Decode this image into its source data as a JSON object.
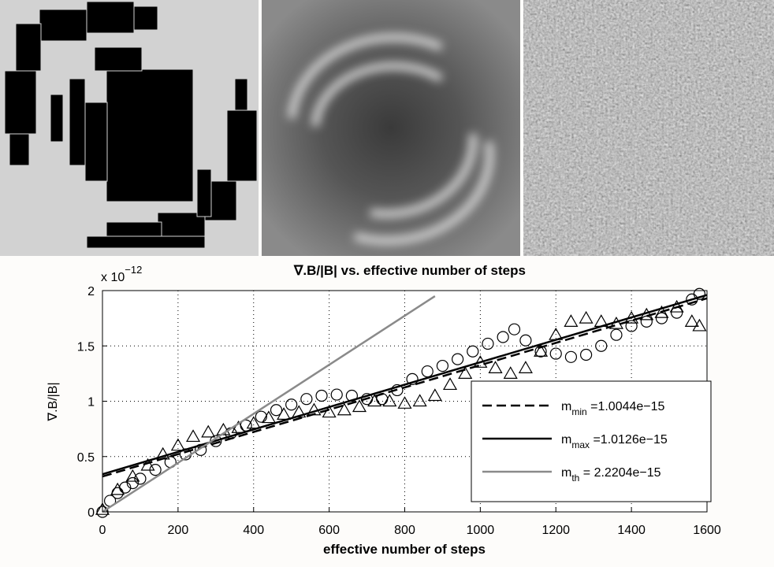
{
  "chart_data": {
    "type": "line",
    "title": "∇.B/|B| vs. effective number of steps",
    "x_label": "effective number of steps",
    "y_label": "∇.B/|B|",
    "y_multiplier": {
      "base": "x 10",
      "exponent": "−12"
    },
    "xlim": [
      0,
      1600
    ],
    "ylim": [
      0,
      2
    ],
    "xticks": [
      0,
      200,
      400,
      600,
      800,
      1000,
      1200,
      1400,
      1600
    ],
    "yticks": [
      0,
      0.5,
      1,
      1.5,
      2
    ],
    "grid": true,
    "legend_position": "lower right",
    "series": [
      {
        "marker": "circle",
        "color": "#000000",
        "x": [
          0,
          20,
          40,
          60,
          80,
          100,
          140,
          180,
          220,
          260,
          300,
          340,
          380,
          420,
          460,
          500,
          540,
          580,
          620,
          660,
          700,
          740,
          780,
          820,
          860,
          900,
          940,
          980,
          1020,
          1060,
          1090,
          1120,
          1160,
          1200,
          1240,
          1280,
          1320,
          1360,
          1400,
          1440,
          1480,
          1520,
          1560,
          1580
        ],
        "values": [
          0,
          0.1,
          0.17,
          0.22,
          0.26,
          0.3,
          0.38,
          0.45,
          0.52,
          0.56,
          0.64,
          0.71,
          0.78,
          0.86,
          0.92,
          0.97,
          1.02,
          1.05,
          1.06,
          1.05,
          1.02,
          1.02,
          1.1,
          1.2,
          1.27,
          1.32,
          1.38,
          1.45,
          1.52,
          1.58,
          1.65,
          1.55,
          1.45,
          1.43,
          1.4,
          1.42,
          1.5,
          1.6,
          1.68,
          1.72,
          1.75,
          1.8,
          1.92,
          1.97
        ]
      },
      {
        "marker": "triangle",
        "color": "#000000",
        "x": [
          0,
          40,
          80,
          120,
          160,
          200,
          240,
          280,
          320,
          360,
          400,
          440,
          480,
          520,
          560,
          600,
          640,
          680,
          720,
          760,
          800,
          840,
          880,
          920,
          960,
          1000,
          1040,
          1080,
          1120,
          1160,
          1200,
          1240,
          1280,
          1320,
          1360,
          1400,
          1440,
          1480,
          1520,
          1560,
          1580
        ],
        "values": [
          0.02,
          0.2,
          0.32,
          0.42,
          0.52,
          0.6,
          0.68,
          0.72,
          0.74,
          0.76,
          0.8,
          0.85,
          0.88,
          0.9,
          0.92,
          0.9,
          0.92,
          0.95,
          1.0,
          1.0,
          0.98,
          1.0,
          1.05,
          1.15,
          1.25,
          1.35,
          1.3,
          1.25,
          1.3,
          1.45,
          1.6,
          1.72,
          1.75,
          1.72,
          1.7,
          1.75,
          1.78,
          1.8,
          1.85,
          1.72,
          1.68
        ]
      },
      {
        "name": {
          "base": "m",
          "sub": "min",
          "rest": " =1.0044e−15"
        },
        "color": "#000000",
        "dashed": true,
        "x": [
          0,
          1600
        ],
        "values": [
          0.32,
          1.93
        ]
      },
      {
        "name": {
          "base": "m",
          "sub": "max",
          "rest": " =1.0126e−15"
        },
        "color": "#000000",
        "dashed": false,
        "x": [
          0,
          1600
        ],
        "values": [
          0.34,
          1.96
        ]
      },
      {
        "name": {
          "base": "m",
          "sub": "th",
          "rest": " = 2.2204e−15"
        },
        "color": "#8a8a8a",
        "dashed": false,
        "x": [
          0,
          880
        ],
        "values": [
          0,
          1.95
        ]
      }
    ]
  }
}
